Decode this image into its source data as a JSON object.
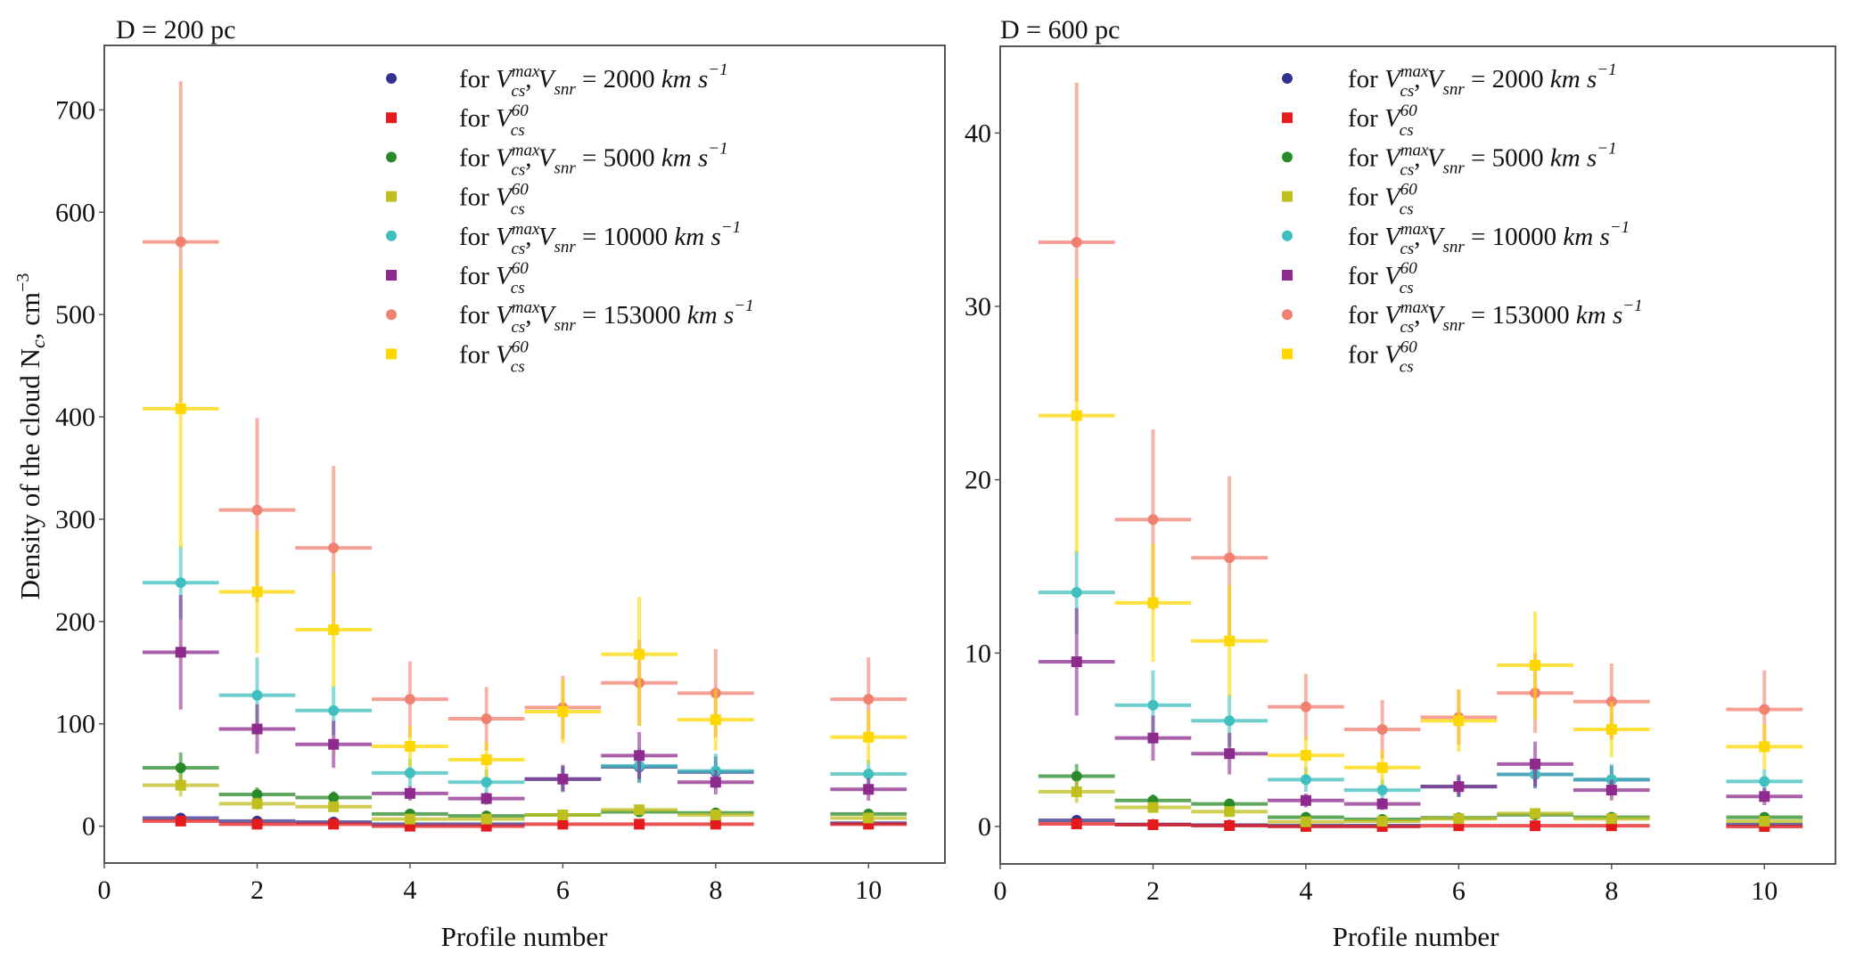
{
  "figure": {
    "ylabel": "Density of the cloud N",
    "ylabel_sub": "c",
    "ylabel_unit": ", cm",
    "ylabel_exp": "−3",
    "xlabel": "Profile number"
  },
  "legend": {
    "items": [
      {
        "marker": "circle",
        "color": "#33338f",
        "prefix": "for ",
        "var": "V",
        "sup": "max",
        "sub": "cs",
        "extra": ", V",
        "extra_sub": "snr",
        "value": " = 2000 ",
        "unit": "km s",
        "unit_exp": "−1"
      },
      {
        "marker": "square",
        "color": "#e41a1c",
        "prefix": "for ",
        "var": "V",
        "sup": "60",
        "sub": "cs"
      },
      {
        "marker": "circle",
        "color": "#2a8a2a",
        "prefix": "for ",
        "var": "V",
        "sup": "max",
        "sub": "cs",
        "extra": ", V",
        "extra_sub": "snr",
        "value": " = 5000 ",
        "unit": "km s",
        "unit_exp": "−1"
      },
      {
        "marker": "square",
        "color": "#bfbf1f",
        "prefix": "for ",
        "var": "V",
        "sup": "60",
        "sub": "cs"
      },
      {
        "marker": "circle",
        "color": "#3fbfbf",
        "prefix": "for ",
        "var": "V",
        "sup": "max",
        "sub": "cs",
        "extra": ", V",
        "extra_sub": "snr",
        "value": " = 10000 ",
        "unit": "km s",
        "unit_exp": "−1"
      },
      {
        "marker": "square",
        "color": "#8e2a8e",
        "prefix": "for ",
        "var": "V",
        "sup": "60",
        "sub": "cs"
      },
      {
        "marker": "circle",
        "color": "#f08070",
        "prefix": "for ",
        "var": "V",
        "sup": "max",
        "sub": "cs",
        "extra": ", V",
        "extra_sub": "snr",
        "value": " = 153000 ",
        "unit": "km s",
        "unit_exp": "−1"
      },
      {
        "marker": "square",
        "color": "#ffd700",
        "prefix": "for ",
        "var": "V",
        "sup": "60",
        "sub": "cs"
      }
    ]
  },
  "chart_data": [
    {
      "type": "scatter",
      "title": "D = 200 pc",
      "xlabel": "Profile number",
      "ylabel": "Density of the cloud N_c, cm^-3",
      "xlim": [
        0,
        11
      ],
      "ylim": [
        -36,
        763
      ],
      "xticks": [
        0,
        2,
        4,
        6,
        8,
        10
      ],
      "yticks": [
        0,
        100,
        200,
        300,
        400,
        500,
        600,
        700
      ],
      "x_halfwidth": 0.5,
      "grid": false,
      "legend_position": "top-right",
      "x": [
        1,
        2,
        3,
        4,
        5,
        6,
        7,
        8,
        10
      ],
      "series": [
        {
          "name": "for V_cs^max, V_snr = 2000 km s^-1",
          "marker": "circle",
          "color": "#33338f",
          "values": [
            8,
            5,
            4,
            2,
            2,
            46,
            58,
            53,
            3
          ],
          "err_low": [
            1,
            1,
            1,
            1,
            1,
            12,
            15,
            15,
            1
          ],
          "err_high": [
            1,
            1,
            1,
            1,
            1,
            12,
            15,
            15,
            1
          ]
        },
        {
          "name": "for V_cs^60 (2000 km s^-1)",
          "marker": "square",
          "color": "#e41a1c",
          "values": [
            5,
            2,
            2,
            0,
            0,
            2,
            2,
            2,
            2
          ],
          "err_low": [
            3,
            2,
            2,
            2,
            2,
            2,
            2,
            2,
            2
          ],
          "err_high": [
            3,
            2,
            2,
            2,
            2,
            2,
            2,
            2,
            2
          ]
        },
        {
          "name": "for V_cs^max, V_snr = 5000 km s^-1",
          "marker": "circle",
          "color": "#2a8a2a",
          "values": [
            57,
            31,
            28,
            12,
            10,
            11,
            14,
            13,
            12
          ],
          "err_low": [
            15,
            7,
            6,
            3,
            3,
            3,
            4,
            3,
            3
          ],
          "err_high": [
            15,
            7,
            6,
            3,
            3,
            3,
            4,
            3,
            3
          ]
        },
        {
          "name": "for V_cs^60 (5000 km s^-1)",
          "marker": "square",
          "color": "#bfbf1f",
          "values": [
            40,
            22,
            19,
            7,
            7,
            11,
            16,
            11,
            8
          ],
          "err_low": [
            11,
            6,
            5,
            2,
            2,
            3,
            4,
            3,
            2
          ],
          "err_high": [
            11,
            6,
            5,
            2,
            2,
            3,
            4,
            3,
            2
          ]
        },
        {
          "name": "for V_cs^max, V_snr = 10000 km s^-1",
          "marker": "circle",
          "color": "#3fbfbf",
          "values": [
            238,
            128,
            113,
            52,
            43,
            46,
            59,
            54,
            51
          ],
          "err_low": [
            36,
            37,
            24,
            14,
            12,
            13,
            17,
            17,
            14
          ],
          "err_high": [
            36,
            37,
            24,
            14,
            12,
            13,
            17,
            17,
            14
          ]
        },
        {
          "name": "for V_cs^60 (10000 km s^-1)",
          "marker": "square",
          "color": "#8e2a8e",
          "values": [
            170,
            95,
            80,
            32,
            27,
            46,
            69,
            43,
            36
          ],
          "err_low": [
            56,
            24,
            23,
            7,
            6,
            12,
            23,
            12,
            11
          ],
          "err_high": [
            56,
            24,
            23,
            7,
            6,
            14,
            23,
            12,
            11
          ]
        },
        {
          "name": "for V_cs^max, V_snr = 153000 km s^-1",
          "marker": "circle",
          "color": "#f08070",
          "values": [
            571,
            309,
            272,
            124,
            105,
            116,
            140,
            130,
            124
          ],
          "err_low": [
            157,
            90,
            80,
            37,
            31,
            31,
            42,
            43,
            41
          ],
          "err_high": [
            157,
            90,
            80,
            37,
            31,
            31,
            42,
            43,
            41
          ]
        },
        {
          "name": "for V_cs^60 (153000 km s^-1)",
          "marker": "square",
          "color": "#ffd700",
          "values": [
            408,
            229,
            192,
            78,
            65,
            112,
            168,
            104,
            87
          ],
          "err_low": [
            136,
            60,
            56,
            20,
            17,
            31,
            70,
            30,
            26
          ],
          "err_high": [
            136,
            60,
            56,
            20,
            17,
            31,
            56,
            30,
            26
          ]
        }
      ]
    },
    {
      "type": "scatter",
      "title": "D = 600 pc",
      "xlabel": "Profile number",
      "ylabel": "",
      "xlim": [
        0,
        10.93
      ],
      "ylim": [
        -2.16,
        45.0
      ],
      "xticks": [
        0,
        2,
        4,
        6,
        8,
        10
      ],
      "yticks": [
        0,
        10,
        20,
        30,
        40
      ],
      "x_halfwidth": 0.5,
      "grid": false,
      "legend_position": "top-right",
      "x": [
        1,
        2,
        3,
        4,
        5,
        6,
        7,
        8,
        10
      ],
      "series": [
        {
          "name": "for V_cs^max, V_snr = 2000 km s^-1",
          "marker": "circle",
          "color": "#33338f",
          "values": [
            0.36,
            0.12,
            0.08,
            0.05,
            0.05,
            2.3,
            3.0,
            2.7,
            0.12
          ],
          "err_low": [
            0.05,
            0.03,
            0.03,
            0.02,
            0.02,
            0.6,
            0.8,
            0.8,
            0.03
          ],
          "err_high": [
            0.05,
            0.03,
            0.03,
            0.02,
            0.02,
            0.6,
            0.8,
            0.8,
            0.03
          ]
        },
        {
          "name": "for V_cs^60 (2000 km s^-1)",
          "marker": "square",
          "color": "#e41a1c",
          "values": [
            0.15,
            0.1,
            0.05,
            0.0,
            0.0,
            0.04,
            0.04,
            0.04,
            0.0
          ],
          "err_low": [
            0.1,
            0.1,
            0.1,
            0.1,
            0.1,
            0.1,
            0.1,
            0.1,
            0.1
          ],
          "err_high": [
            0.1,
            0.1,
            0.1,
            0.1,
            0.1,
            0.1,
            0.1,
            0.1,
            0.1
          ]
        },
        {
          "name": "for V_cs^max, V_snr = 5000 km s^-1",
          "marker": "circle",
          "color": "#2a8a2a",
          "values": [
            2.9,
            1.5,
            1.3,
            0.53,
            0.41,
            0.5,
            0.67,
            0.53,
            0.53
          ],
          "err_low": [
            0.7,
            0.35,
            0.3,
            0.15,
            0.12,
            0.15,
            0.2,
            0.15,
            0.15
          ],
          "err_high": [
            0.7,
            0.35,
            0.3,
            0.15,
            0.12,
            0.15,
            0.2,
            0.15,
            0.15
          ]
        },
        {
          "name": "for V_cs^60 (5000 km s^-1)",
          "marker": "square",
          "color": "#bfbf1f",
          "values": [
            2.0,
            1.1,
            0.86,
            0.27,
            0.3,
            0.45,
            0.75,
            0.45,
            0.3
          ],
          "err_low": [
            0.65,
            0.3,
            0.25,
            0.1,
            0.1,
            0.12,
            0.2,
            0.12,
            0.1
          ],
          "err_high": [
            0.65,
            0.3,
            0.25,
            0.1,
            0.1,
            0.12,
            0.2,
            0.12,
            0.1
          ]
        },
        {
          "name": "for V_cs^max, V_snr = 10000 km s^-1",
          "marker": "circle",
          "color": "#3fbfbf",
          "values": [
            13.5,
            7.0,
            6.1,
            2.7,
            2.1,
            2.3,
            3.0,
            2.7,
            2.6
          ],
          "err_low": [
            2.4,
            2.0,
            1.5,
            0.7,
            0.6,
            0.6,
            0.8,
            0.9,
            0.7
          ],
          "err_high": [
            2.4,
            2.0,
            1.5,
            0.7,
            0.6,
            0.6,
            0.8,
            0.9,
            0.7
          ]
        },
        {
          "name": "for V_cs^60 (10000 km s^-1)",
          "marker": "square",
          "color": "#8e2a8e",
          "values": [
            9.5,
            5.1,
            4.2,
            1.5,
            1.3,
            2.3,
            3.6,
            2.1,
            1.73
          ],
          "err_low": [
            3.1,
            1.3,
            1.2,
            0.4,
            0.35,
            0.55,
            1.3,
            0.6,
            0.5
          ],
          "err_high": [
            3.1,
            1.3,
            1.2,
            0.4,
            0.35,
            0.7,
            1.3,
            0.6,
            0.5
          ]
        },
        {
          "name": "for V_cs^max, V_snr = 153000 km s^-1",
          "marker": "circle",
          "color": "#f08070",
          "values": [
            33.7,
            17.7,
            15.5,
            6.9,
            5.6,
            6.3,
            7.7,
            7.2,
            6.75
          ],
          "err_low": [
            9.2,
            5.2,
            4.7,
            1.9,
            1.7,
            1.6,
            2.3,
            2.2,
            2.25
          ],
          "err_high": [
            9.2,
            5.2,
            4.7,
            1.9,
            1.7,
            1.6,
            2.3,
            2.2,
            2.25
          ]
        },
        {
          "name": "for V_cs^60 (153000 km s^-1)",
          "marker": "square",
          "color": "#ffd700",
          "values": [
            23.7,
            12.9,
            10.7,
            4.1,
            3.4,
            6.1,
            9.3,
            5.6,
            4.6
          ],
          "err_low": [
            7.9,
            3.4,
            3.2,
            1.1,
            1.0,
            1.8,
            3.1,
            1.6,
            1.3
          ],
          "err_high": [
            7.9,
            3.4,
            3.2,
            1.1,
            1.0,
            1.8,
            3.1,
            1.6,
            1.3
          ]
        }
      ]
    }
  ]
}
